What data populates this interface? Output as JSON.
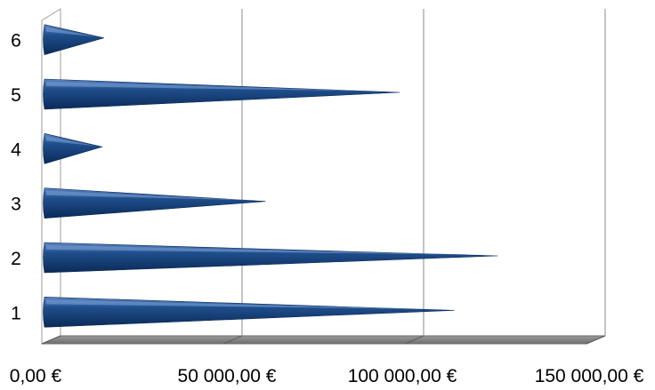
{
  "chart_data": {
    "type": "bar",
    "orientation": "horizontal",
    "style": "3d-cone",
    "categories": [
      "1",
      "2",
      "3",
      "4",
      "5",
      "6"
    ],
    "values": [
      110000,
      122000,
      58000,
      13000,
      95000,
      13500
    ],
    "xlim": [
      0,
      150000
    ],
    "xticks": [
      0,
      50000,
      100000,
      150000
    ],
    "xtick_labels": [
      "0,00 €",
      "50 000,00 €",
      "100 000,00 €",
      "150 000,00 €"
    ],
    "grid": true,
    "legend": "none",
    "colors": {
      "bar": "#1f4e8c",
      "bar_dark": "#0b2a57",
      "gridline": "#9e9e9e",
      "floor": "#808080"
    }
  }
}
